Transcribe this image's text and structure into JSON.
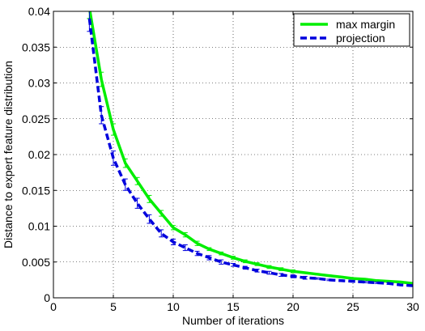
{
  "chart_data": {
    "type": "line",
    "xlabel": "Number of iterations",
    "ylabel": "Distance to expert feature distribution",
    "xlim": [
      0,
      30
    ],
    "ylim": [
      0,
      0.04
    ],
    "x_ticks": [
      "0",
      "5",
      "10",
      "15",
      "20",
      "25",
      "30"
    ],
    "y_ticks": [
      "0",
      "0.005",
      "0.01",
      "0.015",
      "0.02",
      "0.025",
      "0.03",
      "0.035",
      "0.04"
    ],
    "grid": true,
    "legend_position": "top-right",
    "series": [
      {
        "name": "max margin",
        "color": "#00ee00",
        "style": "solid",
        "x": [
          3,
          4,
          5,
          6,
          7,
          8,
          9,
          10,
          11,
          12,
          13,
          14,
          15,
          16,
          17,
          18,
          19,
          20,
          21,
          22,
          23,
          24,
          25,
          26,
          27,
          28,
          29,
          30
        ],
        "y": [
          0.0405,
          0.0305,
          0.0235,
          0.0188,
          0.0163,
          0.0138,
          0.0118,
          0.0098,
          0.0088,
          0.0076,
          0.0068,
          0.0062,
          0.0056,
          0.0051,
          0.0047,
          0.0043,
          0.004,
          0.0037,
          0.0035,
          0.0033,
          0.0031,
          0.0029,
          0.0027,
          0.0026,
          0.0024,
          0.0023,
          0.0022,
          0.002
        ],
        "err": [
          0.0015,
          0.001,
          0.0008,
          0.0006,
          0.0005,
          0.0005,
          0.0004,
          0.0003,
          0.0003,
          0.0003,
          0.0002,
          0.0002,
          0.0002,
          0.0002,
          0.0002,
          0.0002,
          0.0002,
          0.0002,
          0.0001,
          0.0001,
          0.0001,
          0.0001,
          0.0001,
          0.0001,
          0.0001,
          0.0001,
          0.0001,
          0.0001
        ]
      },
      {
        "name": "projection",
        "color": "#0000dd",
        "style": "dashed",
        "x": [
          3,
          4,
          5,
          6,
          7,
          8,
          9,
          10,
          11,
          12,
          13,
          14,
          15,
          16,
          17,
          18,
          19,
          20,
          21,
          22,
          23,
          24,
          25,
          26,
          27,
          28,
          29,
          30
        ],
        "y": [
          0.039,
          0.0255,
          0.0195,
          0.0158,
          0.0132,
          0.011,
          0.009,
          0.0078,
          0.007,
          0.0062,
          0.0056,
          0.005,
          0.0046,
          0.0042,
          0.0038,
          0.0035,
          0.0032,
          0.003,
          0.0028,
          0.0027,
          0.0025,
          0.0024,
          0.0023,
          0.0022,
          0.0021,
          0.002,
          0.0018,
          0.0017
        ],
        "err": [
          0.0018,
          0.0012,
          0.001,
          0.0008,
          0.0007,
          0.0006,
          0.0005,
          0.0004,
          0.0004,
          0.0003,
          0.0003,
          0.0003,
          0.0002,
          0.0002,
          0.0002,
          0.0002,
          0.0002,
          0.0002,
          0.0002,
          0.0001,
          0.0001,
          0.0001,
          0.0001,
          0.0001,
          0.0001,
          0.0001,
          0.0001,
          0.0001
        ]
      }
    ]
  }
}
